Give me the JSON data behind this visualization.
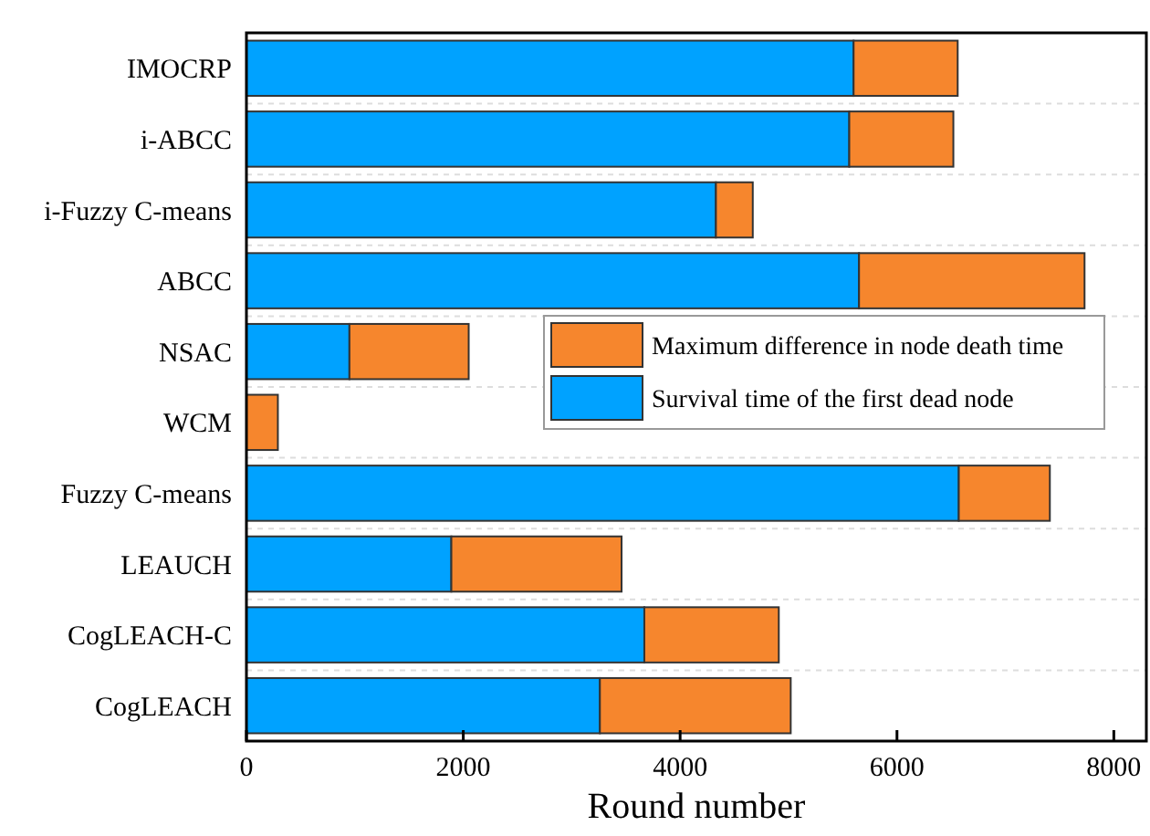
{
  "chart_data": {
    "type": "bar",
    "orientation": "horizontal",
    "stacked": true,
    "xlabel": "Round number",
    "categories": [
      "IMOCRP",
      "i-ABCC",
      "i-Fuzzy C-means",
      "ABCC",
      "NSAC",
      "WCM",
      "Fuzzy C-means",
      "LEAUCH",
      "CogLEACH-C",
      "CogLEACH"
    ],
    "series": [
      {
        "name": "Survival time of the first dead node",
        "color": "#00a2ff",
        "values": [
          5600,
          5560,
          4330,
          5650,
          950,
          null,
          6570,
          1890,
          3670,
          3260
        ]
      },
      {
        "name": "Maximum difference in node death time",
        "color": "#f6862d",
        "values": [
          960,
          960,
          340,
          2080,
          1100,
          290,
          840,
          1570,
          1240,
          1760
        ]
      }
    ],
    "xlim": [
      0,
      8300
    ],
    "xticks": [
      0,
      2000,
      4000,
      6000,
      8000
    ],
    "grid": "y",
    "legend": "right"
  }
}
